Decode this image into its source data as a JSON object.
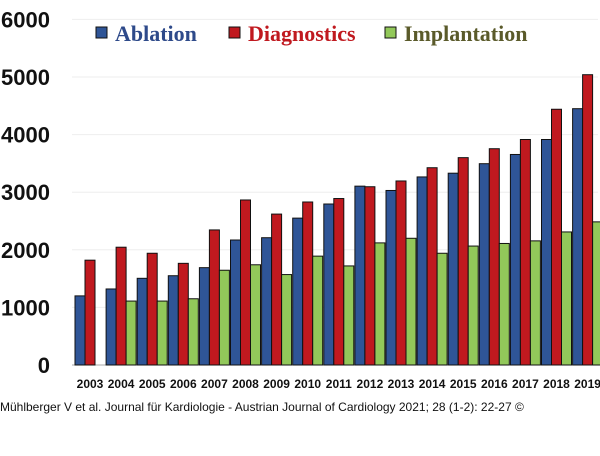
{
  "chart_data": {
    "type": "bar",
    "categories": [
      "2003",
      "2004",
      "2005",
      "2006",
      "2007",
      "2008",
      "2009",
      "2010",
      "2011",
      "2012",
      "2013",
      "2014",
      "2015",
      "2016",
      "2017",
      "2018",
      "2019"
    ],
    "series": [
      {
        "name": "Ablation",
        "color": "#2F5597",
        "text_color": "#2E4A8A",
        "values": [
          1200,
          1320,
          1505,
          1550,
          1690,
          2170,
          2210,
          2550,
          2795,
          3105,
          3030,
          3265,
          3330,
          3495,
          3655,
          3915,
          4450
        ]
      },
      {
        "name": "Diagnostics",
        "color": "#C0191F",
        "text_color": "#C0191F",
        "values": [
          1820,
          2045,
          1940,
          1765,
          2345,
          2865,
          2620,
          2830,
          2890,
          3095,
          3195,
          3425,
          3600,
          3755,
          3915,
          4440,
          5040
        ]
      },
      {
        "name": "Implantation",
        "color": "#92C85A",
        "text_color": "#5A5A2A",
        "values": [
          null,
          1110,
          1110,
          1150,
          1645,
          1740,
          1570,
          1890,
          1720,
          2120,
          2200,
          1940,
          2065,
          2110,
          2155,
          2310,
          2485
        ]
      }
    ],
    "yticks": [
      0,
      1000,
      2000,
      3000,
      4000,
      5000,
      6000
    ],
    "ylim": [
      0,
      6000
    ],
    "grid": true,
    "legend_position": "top",
    "title": "",
    "xlabel": "",
    "ylabel": ""
  },
  "footer": "Mühlberger V et al. Journal für Kardiologie - Austrian Journal of Cardiology 2021; 28 (1-2): 22-27 ©"
}
